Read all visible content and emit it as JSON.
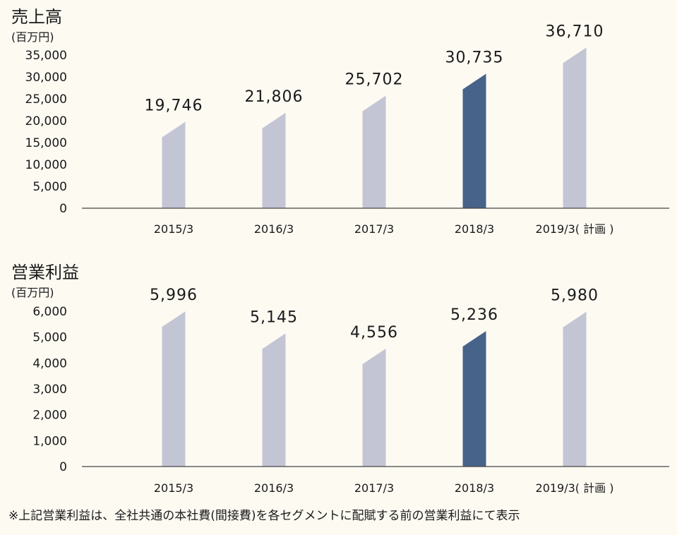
{
  "chart_data": [
    {
      "type": "bar",
      "title": "売上高",
      "unit": "(百万円)",
      "categories": [
        "2015/3",
        "2016/3",
        "2017/3",
        "2018/3",
        "2019/3( 計画 )"
      ],
      "values": [
        19746,
        21806,
        25702,
        30735,
        36710
      ],
      "value_labels": [
        "19,746",
        "21,806",
        "25,702",
        "30,735",
        "36,710"
      ],
      "highlight_index": 3,
      "ylim": [
        0,
        35000
      ],
      "yticks": [
        "0",
        "5,000",
        "10,000",
        "15,000",
        "20,000",
        "25,000",
        "30,000",
        "35,000"
      ],
      "xlabel": "",
      "ylabel": "(百万円)",
      "grid": false
    },
    {
      "type": "bar",
      "title": "営業利益",
      "unit": "(百万円)",
      "categories": [
        "2015/3",
        "2016/3",
        "2017/3",
        "2018/3",
        "2019/3( 計画 )"
      ],
      "values": [
        5996,
        5145,
        4556,
        5236,
        5980
      ],
      "value_labels": [
        "5,996",
        "5,145",
        "4,556",
        "5,236",
        "5,980"
      ],
      "highlight_index": 3,
      "ylim": [
        0,
        6000
      ],
      "yticks": [
        "0",
        "1,000",
        "2,000",
        "3,000",
        "4,000",
        "5,000",
        "6,000"
      ],
      "xlabel": "",
      "ylabel": "(百万円)",
      "grid": false
    }
  ],
  "colors": {
    "bar": "#c3c5d5",
    "highlight": "#48638a",
    "background": "#fdfaf2"
  },
  "footnote": "※上記営業利益は、全社共通の本社費(間接費)を各セグメントに配賦する前の営業利益にて表示"
}
